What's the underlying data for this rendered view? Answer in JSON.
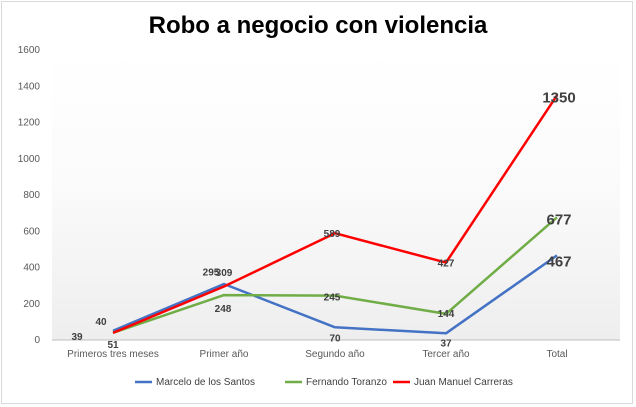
{
  "chart_data": {
    "type": "line",
    "title": "Robo a negocio con violencia",
    "xlabel": "",
    "ylabel": "",
    "categories": [
      "Primeros tres meses",
      "Primer año",
      "Segundo año",
      "Tercer año",
      "Total"
    ],
    "ylim": [
      0,
      1600
    ],
    "yticks": [
      0,
      200,
      400,
      600,
      800,
      1000,
      1200,
      1400,
      1600
    ],
    "grid": false,
    "legend": "bottom",
    "series": [
      {
        "name": "Marcelo de los Santos",
        "color": "#4472c4",
        "values": [
          51,
          309,
          70,
          37,
          467
        ]
      },
      {
        "name": "Fernando Toranzo",
        "color": "#70ad47",
        "values": [
          40,
          248,
          245,
          144,
          677
        ]
      },
      {
        "name": "Juan Manuel Carreras",
        "color": "#ff0000",
        "values": [
          39,
          295,
          589,
          427,
          1350
        ]
      }
    ]
  }
}
